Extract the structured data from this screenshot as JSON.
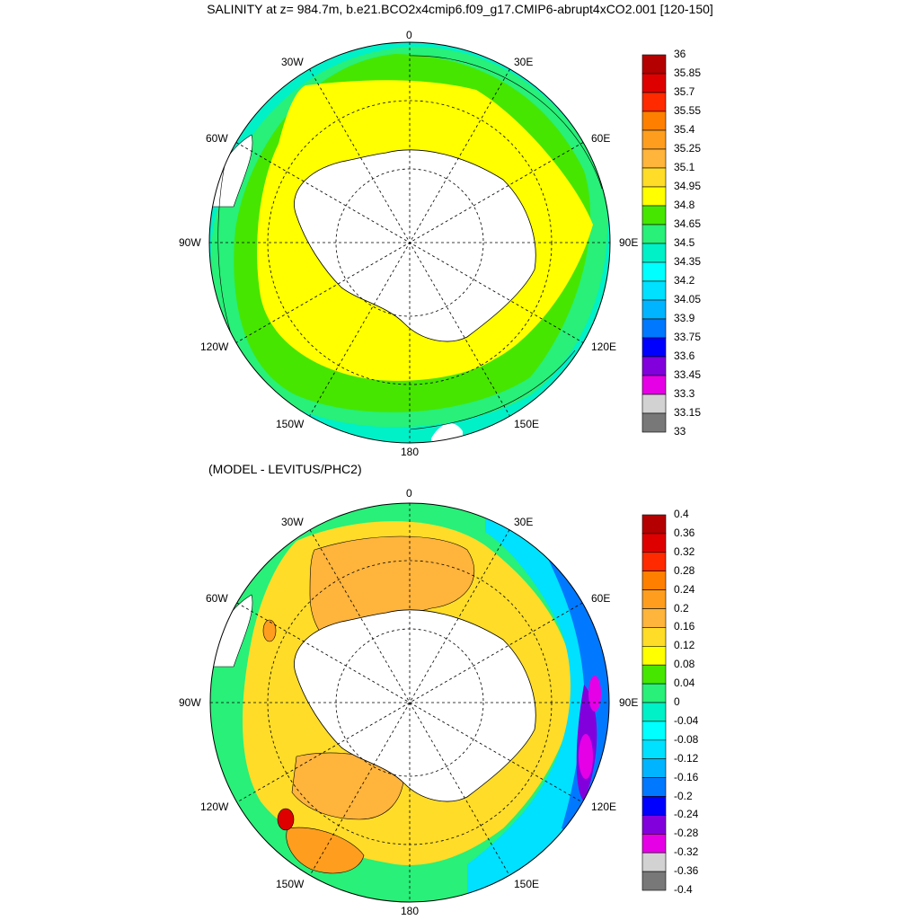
{
  "title": "SALINITY at z= 984.7m, b.e21.BCO2x4cmip6.f09_g17.CMIP6-abrupt4xCO2.001 [120-150]",
  "subtitle": "(MODEL - LEVITUS/PHC2)",
  "longitude_labels": {
    "top": "0",
    "top_left": "30W",
    "top_right": "30E",
    "upper_left": "60W",
    "upper_right": "60E",
    "left": "90W",
    "right": "90E",
    "lower_left": "120W",
    "lower_right": "120E",
    "bottom_left": "150W",
    "bottom_right": "150E",
    "bottom": "180"
  },
  "colorbar_top": {
    "labels": [
      "36",
      "35.85",
      "35.7",
      "35.55",
      "35.4",
      "35.25",
      "35.1",
      "34.95",
      "34.8",
      "34.65",
      "34.5",
      "34.35",
      "34.2",
      "34.05",
      "33.9",
      "33.75",
      "33.6",
      "33.45",
      "33.3",
      "33.15",
      "33"
    ],
    "colors": [
      "#b40000",
      "#de0000",
      "#ff2a00",
      "#ff8000",
      "#ff9e1e",
      "#ffb43c",
      "#ffdc28",
      "#ffff00",
      "#46e600",
      "#28f078",
      "#00f0c8",
      "#00ffff",
      "#00e0ff",
      "#00b4ff",
      "#0078ff",
      "#0000ff",
      "#8200dc",
      "#e600e6",
      "#d2d2d2",
      "#787878"
    ]
  },
  "colorbar_bottom": {
    "labels": [
      "0.4",
      "0.36",
      "0.32",
      "0.28",
      "0.24",
      "0.2",
      "0.16",
      "0.12",
      "0.08",
      "0.04",
      "0",
      "-0.04",
      "-0.08",
      "-0.12",
      "-0.16",
      "-0.2",
      "-0.24",
      "-0.28",
      "-0.32",
      "-0.36",
      "-0.4"
    ],
    "colors": [
      "#b40000",
      "#de0000",
      "#ff2a00",
      "#ff8000",
      "#ff9e1e",
      "#ffb43c",
      "#ffdc28",
      "#ffff00",
      "#46e600",
      "#28f078",
      "#00f0c8",
      "#00ffff",
      "#00e0ff",
      "#00b4ff",
      "#0078ff",
      "#0000ff",
      "#8200dc",
      "#e600e6",
      "#d2d2d2",
      "#787878"
    ]
  }
}
